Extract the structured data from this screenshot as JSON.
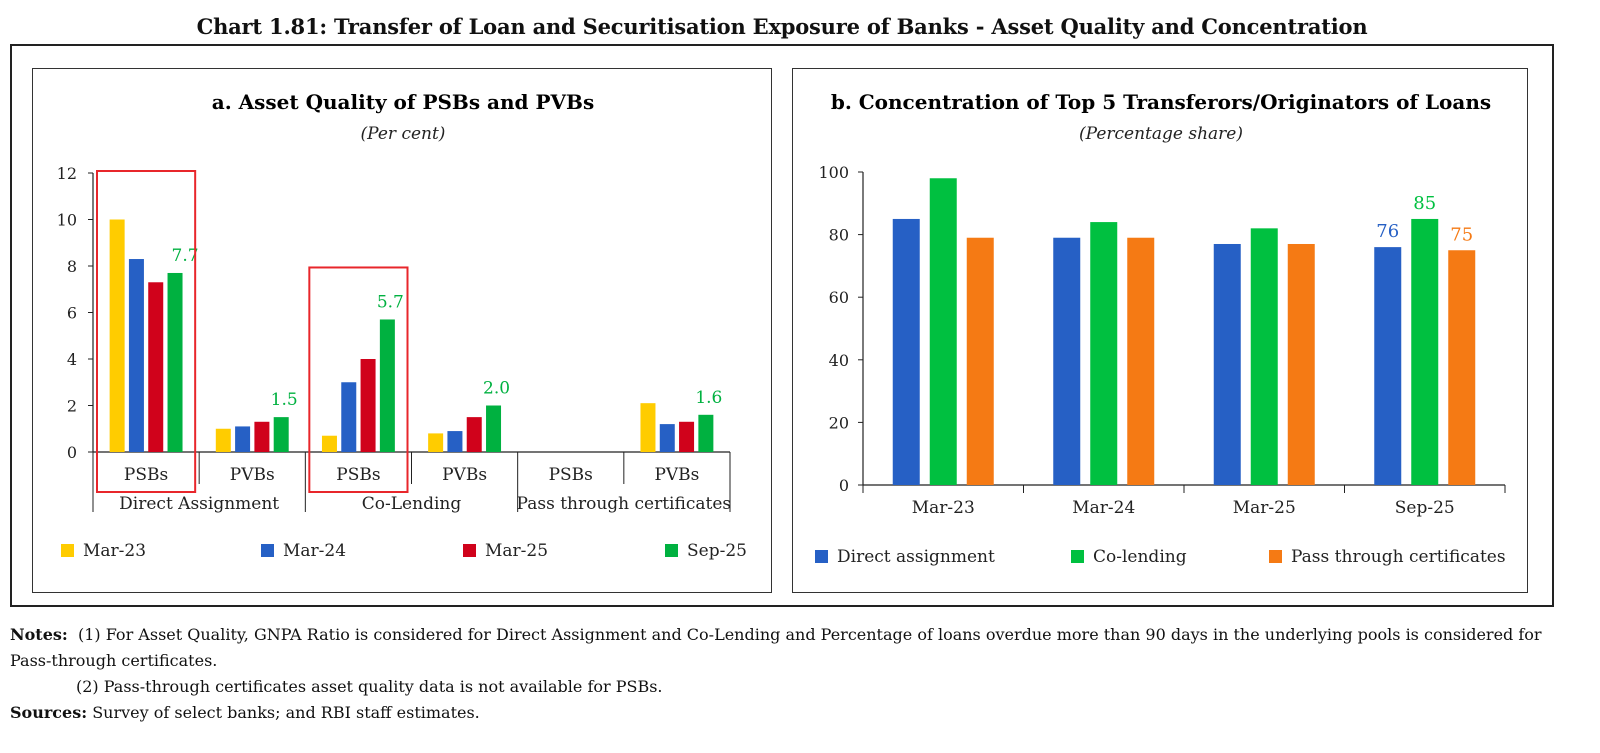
{
  "main_title": "Chart 1.81: Transfer of Loan and Securitisation Exposure of Banks - Asset Quality and Concentration",
  "colors": {
    "mar23": "#ffcc00",
    "mar24": "#2660c5",
    "mar25": "#d0021b",
    "sep25": "#00b140",
    "direct": "#2660c5",
    "colending": "#00c040",
    "ptc": "#f57a14",
    "highlight": "#e8262b"
  },
  "chart_data": [
    {
      "type": "bar",
      "title": "a. Asset Quality of PSBs and PVBs",
      "subtitle": "(Per cent)",
      "ylim": [
        0,
        12
      ],
      "yticks": [
        "0",
        "2",
        "4",
        "6",
        "8",
        "10",
        "12"
      ],
      "groups": [
        "Direct Assignment",
        "Co-Lending",
        "Pass through certificates"
      ],
      "categories": [
        "PSBs",
        "PVBs",
        "PSBs",
        "PVBs",
        "PSBs",
        "PVBs"
      ],
      "series": [
        {
          "name": "Mar-23",
          "values": [
            10.0,
            1.0,
            0.7,
            0.8,
            null,
            2.1
          ]
        },
        {
          "name": "Mar-24",
          "values": [
            8.3,
            1.1,
            3.0,
            0.9,
            null,
            1.2
          ]
        },
        {
          "name": "Mar-25",
          "values": [
            7.3,
            1.3,
            4.0,
            1.5,
            null,
            1.3
          ]
        },
        {
          "name": "Sep-25",
          "values": [
            7.7,
            1.5,
            5.7,
            2.0,
            null,
            1.6
          ]
        }
      ],
      "data_labels": [
        "7.7",
        "1.5",
        "5.7",
        "2.0",
        "1.6"
      ],
      "highlighted": [
        "Direct Assignment PSBs",
        "Co-Lending PSBs"
      ],
      "legend": [
        "Mar-23",
        "Mar-24",
        "Mar-25",
        "Sep-25"
      ]
    },
    {
      "type": "bar",
      "title": "b. Concentration of Top 5 Transferors/Originators of Loans",
      "subtitle": "(Percentage share)",
      "ylim": [
        0,
        100
      ],
      "yticks": [
        "0",
        "20",
        "40",
        "60",
        "80",
        "100"
      ],
      "categories": [
        "Mar-23",
        "Mar-24",
        "Mar-25",
        "Sep-25"
      ],
      "series": [
        {
          "name": "Direct assignment",
          "values": [
            85,
            79,
            77,
            76
          ]
        },
        {
          "name": "Co-lending",
          "values": [
            98,
            84,
            82,
            85
          ]
        },
        {
          "name": "Pass through certificates",
          "values": [
            79,
            79,
            77,
            75
          ]
        }
      ],
      "data_labels": [
        "76",
        "85",
        "75"
      ],
      "legend": [
        "Direct assignment",
        "Co-lending",
        "Pass through certificates"
      ]
    }
  ],
  "notes": {
    "label": "Notes:",
    "note1": "(1)  For Asset Quality, GNPA Ratio is considered for Direct Assignment and Co-Lending and Percentage of loans overdue more than 90 days in the underlying pools is considered for Pass-through certificates.",
    "note2": "(2)  Pass-through certificates asset quality data is not available for PSBs.",
    "sources_label": "Sources:",
    "sources": "Survey of select banks; and RBI staff estimates."
  }
}
